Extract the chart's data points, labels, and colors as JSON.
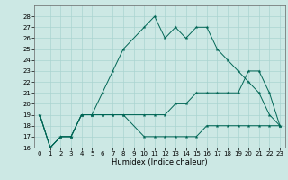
{
  "xlabel": "Humidex (Indice chaleur)",
  "bg_color": "#cce8e4",
  "grid_color": "#aad4d0",
  "line_color": "#006655",
  "xlim": [
    -0.5,
    23.5
  ],
  "ylim": [
    16,
    29
  ],
  "yticks": [
    16,
    17,
    18,
    19,
    20,
    21,
    22,
    23,
    24,
    25,
    26,
    27,
    28
  ],
  "xticks": [
    0,
    1,
    2,
    3,
    4,
    5,
    6,
    7,
    8,
    9,
    10,
    11,
    12,
    13,
    14,
    15,
    16,
    17,
    18,
    19,
    20,
    21,
    22,
    23
  ],
  "line1_x": [
    0,
    1,
    2,
    3,
    4,
    5,
    6,
    7,
    8,
    10,
    11,
    12,
    13,
    14,
    15,
    16,
    17,
    18,
    19,
    20,
    21,
    22,
    23
  ],
  "line1_y": [
    19,
    16,
    17,
    17,
    19,
    19,
    21,
    23,
    25,
    27,
    28,
    26,
    27,
    26,
    27,
    27,
    25,
    24,
    23,
    22,
    21,
    19,
    18
  ],
  "line2_x": [
    0,
    1,
    2,
    3,
    4,
    5,
    6,
    7,
    8,
    10,
    11,
    12,
    13,
    14,
    15,
    16,
    17,
    18,
    19,
    20,
    21,
    22,
    23
  ],
  "line2_y": [
    19,
    16,
    17,
    17,
    19,
    19,
    19,
    19,
    19,
    19,
    19,
    19,
    20,
    20,
    21,
    21,
    21,
    21,
    21,
    23,
    23,
    21,
    18
  ],
  "line3_x": [
    0,
    1,
    2,
    3,
    4,
    5,
    6,
    7,
    8,
    10,
    11,
    12,
    13,
    14,
    15,
    16,
    17,
    18,
    19,
    20,
    21,
    22,
    23
  ],
  "line3_y": [
    19,
    16,
    17,
    17,
    19,
    19,
    19,
    19,
    19,
    17,
    17,
    17,
    17,
    17,
    17,
    18,
    18,
    18,
    18,
    18,
    18,
    18,
    18
  ],
  "title_fontsize": 7,
  "xlabel_fontsize": 6,
  "tick_fontsize": 5
}
